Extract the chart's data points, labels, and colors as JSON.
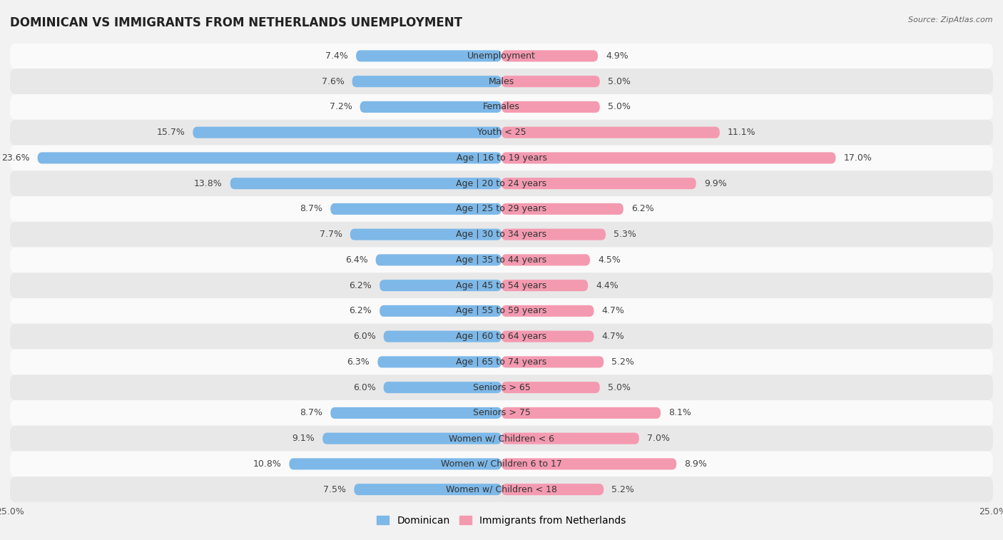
{
  "title": "DOMINICAN VS IMMIGRANTS FROM NETHERLANDS UNEMPLOYMENT",
  "source": "Source: ZipAtlas.com",
  "categories": [
    "Unemployment",
    "Males",
    "Females",
    "Youth < 25",
    "Age | 16 to 19 years",
    "Age | 20 to 24 years",
    "Age | 25 to 29 years",
    "Age | 30 to 34 years",
    "Age | 35 to 44 years",
    "Age | 45 to 54 years",
    "Age | 55 to 59 years",
    "Age | 60 to 64 years",
    "Age | 65 to 74 years",
    "Seniors > 65",
    "Seniors > 75",
    "Women w/ Children < 6",
    "Women w/ Children 6 to 17",
    "Women w/ Children < 18"
  ],
  "dominican": [
    7.4,
    7.6,
    7.2,
    15.7,
    23.6,
    13.8,
    8.7,
    7.7,
    6.4,
    6.2,
    6.2,
    6.0,
    6.3,
    6.0,
    8.7,
    9.1,
    10.8,
    7.5
  ],
  "netherlands": [
    4.9,
    5.0,
    5.0,
    11.1,
    17.0,
    9.9,
    6.2,
    5.3,
    4.5,
    4.4,
    4.7,
    4.7,
    5.2,
    5.0,
    8.1,
    7.0,
    8.9,
    5.2
  ],
  "dominican_color": "#7db8e8",
  "netherlands_color": "#f49ab0",
  "bg_color": "#f2f2f2",
  "row_color_light": "#fafafa",
  "row_color_dark": "#e8e8e8",
  "axis_limit": 25.0,
  "bar_height": 0.45,
  "title_fontsize": 12,
  "label_fontsize": 9,
  "tick_fontsize": 9,
  "legend_fontsize": 10
}
